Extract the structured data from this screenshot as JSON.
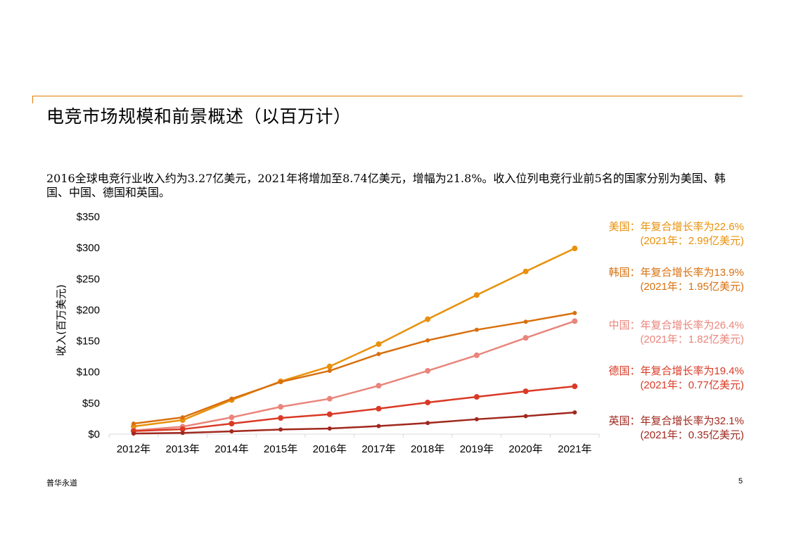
{
  "page": {
    "title": "电竞市场规模和前景概述（以百万计）",
    "paragraph": "2016全球电竞行业收入约为3.27亿美元，2021年将增加至8.74亿美元，增幅为21.8%。收入位列电竞行业前5名的国家分别为美国、韩国、中国、德国和英国。",
    "footer_brand": "普华永道",
    "page_number": "5"
  },
  "chart_data": {
    "type": "line",
    "title": "",
    "xlabel": "",
    "ylabel": "收入(百万美元)",
    "ylim": [
      0,
      350
    ],
    "yticks": [
      0,
      50,
      100,
      150,
      200,
      250,
      300,
      350
    ],
    "ytick_labels": [
      "$0",
      "$50",
      "$100",
      "$150",
      "$200",
      "$250",
      "$300",
      "$350"
    ],
    "categories": [
      "2012年",
      "2013年",
      "2014年",
      "2015年",
      "2016年",
      "2017年",
      "2018年",
      "2019年",
      "2020年",
      "2021年"
    ],
    "grid": false,
    "legend_placement": "right",
    "series": [
      {
        "name": "美国",
        "color": "#E8910C",
        "values": [
          12.5,
          22.6,
          55,
          85,
          109,
          145,
          185,
          224,
          262,
          299
        ],
        "label_line1": "美国：年复合增长率为22.6%",
        "label_line2": "(2021年：2.99亿美元)"
      },
      {
        "name": "韩国",
        "color": "#D8700E",
        "values": [
          17,
          27,
          57,
          84,
          102,
          129,
          151,
          168,
          181,
          195
        ],
        "label_line1": "韩国：年复合增长率为13.9%",
        "label_line2": "(2021年：1.95亿美元)"
      },
      {
        "name": "中国",
        "color": "#E9857B",
        "values": [
          6,
          12,
          27,
          44,
          57,
          78,
          102,
          127,
          155,
          182
        ],
        "label_line1": "中国：年复合增长率为26.4%",
        "label_line2": "(2021年：1.82亿美元)"
      },
      {
        "name": "德国",
        "color": "#D93A26",
        "values": [
          5,
          8,
          17,
          26,
          32,
          41,
          51,
          60,
          69,
          77
        ],
        "label_line1": "德国：年复合增长率为19.4%",
        "label_line2": "(2021年：0.77亿美元)"
      },
      {
        "name": "英国",
        "color": "#A0281E",
        "values": [
          1,
          2,
          4.5,
          7.5,
          9,
          13,
          18,
          24,
          29,
          35
        ],
        "label_line1": "英国：年复合增长率为32.1%",
        "label_line2": "(2021年：0.35亿美元)"
      }
    ]
  }
}
